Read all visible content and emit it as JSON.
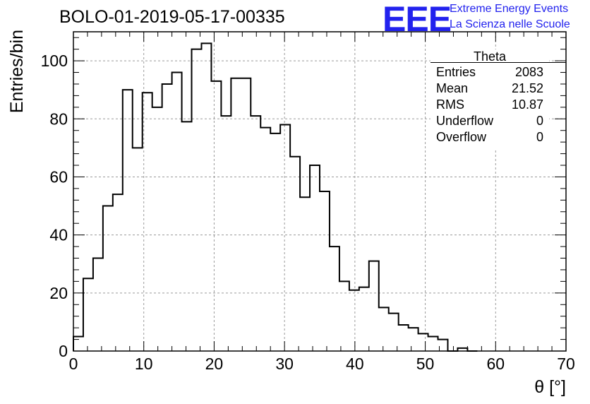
{
  "title": "BOLO-01-2019-05-17-00335",
  "logo": {
    "mark": "EEE",
    "line1": "Extreme Energy Events",
    "line2": "La Scienza nelle Scuole",
    "color": "#2222ee"
  },
  "stats_box": {
    "title": "Theta",
    "rows": [
      {
        "label": "Entries",
        "value": "2083"
      },
      {
        "label": "Mean",
        "value": "21.52"
      },
      {
        "label": "RMS",
        "value": "10.87"
      },
      {
        "label": "Underflow",
        "value": "0"
      },
      {
        "label": "Overflow",
        "value": "0"
      }
    ]
  },
  "chart_data": {
    "type": "histogram",
    "title": "BOLO-01-2019-05-17-00335",
    "xlabel": "θ [°]",
    "ylabel": "Entries/bin",
    "xlim": [
      0,
      70
    ],
    "ylim": [
      0,
      110
    ],
    "bin_width": 1.4,
    "bin_start": 0,
    "counts": [
      5,
      25,
      32,
      50,
      54,
      90,
      70,
      89,
      84,
      92,
      96,
      79,
      104,
      106,
      93,
      81,
      94,
      94,
      81,
      77,
      75,
      78,
      67,
      53,
      64,
      55,
      36,
      24,
      21,
      22,
      31,
      15,
      13,
      9,
      8,
      6,
      5,
      4,
      0,
      1,
      0
    ],
    "x_ticks": [
      "0",
      "10",
      "20",
      "30",
      "40",
      "50",
      "60",
      "70"
    ],
    "y_ticks": [
      "0",
      "20",
      "40",
      "60",
      "80",
      "100"
    ],
    "grid": true,
    "line_color": "#000000"
  }
}
